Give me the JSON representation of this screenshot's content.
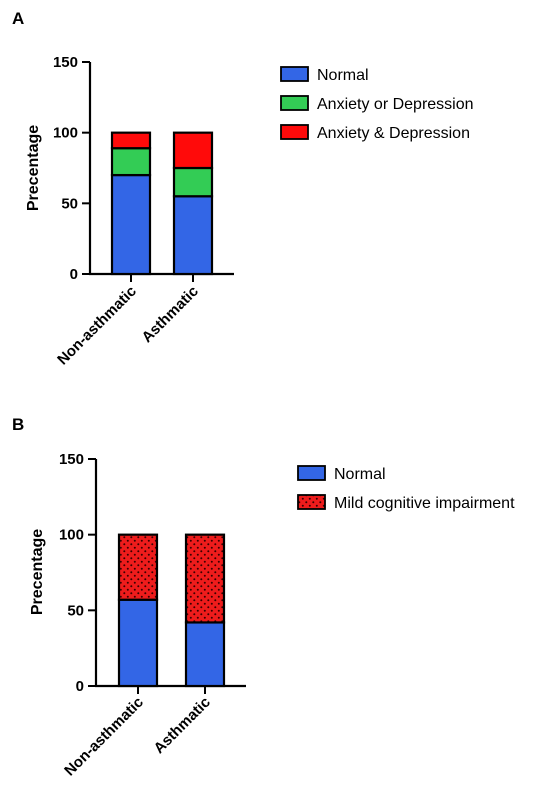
{
  "chart_data": [
    {
      "panel": "A",
      "type": "bar",
      "stacked": true,
      "categories": [
        "Non-asthmatic",
        "Asthmatic"
      ],
      "ylabel": "Precentage",
      "ylim": [
        0,
        150
      ],
      "yticks": [
        0,
        50,
        100,
        150
      ],
      "legend_position": "right",
      "series": [
        {
          "name": "Normal",
          "values": [
            70,
            55
          ],
          "color": "#3366e6",
          "pattern": "solid"
        },
        {
          "name": "Anxiety or Depression",
          "values": [
            19,
            20
          ],
          "color": "#33cc55",
          "pattern": "solid"
        },
        {
          "name": "Anxiety & Depression",
          "values": [
            11,
            25
          ],
          "color": "#ff0a0a",
          "pattern": "solid"
        }
      ]
    },
    {
      "panel": "B",
      "type": "bar",
      "stacked": true,
      "categories": [
        "Non-asthmatic",
        "Asthmatic"
      ],
      "ylabel": "Precentage",
      "ylim": [
        0,
        150
      ],
      "yticks": [
        0,
        50,
        100,
        150
      ],
      "legend_position": "right",
      "series": [
        {
          "name": "Normal",
          "values": [
            57,
            42
          ],
          "color": "#3366e6",
          "pattern": "solid"
        },
        {
          "name": "Mild cognitive impairment",
          "values": [
            43,
            58
          ],
          "color": "#ee1c1c",
          "pattern": "dots"
        }
      ]
    }
  ]
}
